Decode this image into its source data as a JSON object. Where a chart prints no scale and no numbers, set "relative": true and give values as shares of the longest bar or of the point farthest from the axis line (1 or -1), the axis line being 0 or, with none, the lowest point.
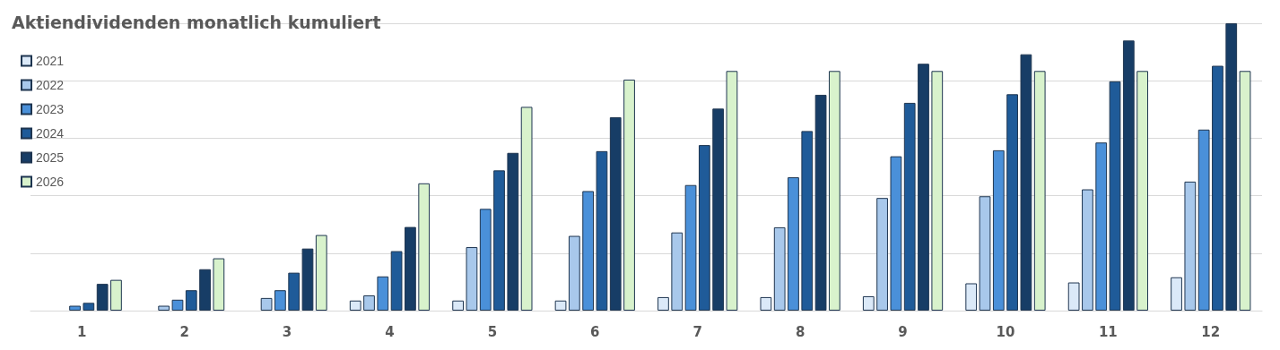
{
  "chart_data": {
    "type": "bar",
    "title": "Aktiendividenden monatlich kumuliert",
    "relative": true,
    "categories": [
      "1",
      "2",
      "3",
      "4",
      "5",
      "6",
      "7",
      "8",
      "9",
      "10",
      "11",
      "12"
    ],
    "series": [
      {
        "name": "2021",
        "color": "#dbe9f8",
        "values": [
          null,
          null,
          null,
          0.035,
          0.035,
          0.035,
          0.047,
          0.047,
          0.05,
          0.095,
          0.098,
          0.116
        ]
      },
      {
        "name": "2022",
        "color": "#a8c8eb",
        "values": [
          null,
          0.017,
          0.044,
          0.053,
          0.221,
          0.26,
          0.272,
          0.29,
          0.392,
          0.398,
          0.422,
          0.449
        ]
      },
      {
        "name": "2023",
        "color": "#4a90d9",
        "values": [
          0.017,
          0.038,
          0.071,
          0.119,
          0.354,
          0.416,
          0.437,
          0.464,
          0.537,
          0.558,
          0.585,
          0.63
        ]
      },
      {
        "name": "2024",
        "color": "#1f5b99",
        "values": [
          0.027,
          0.071,
          0.132,
          0.207,
          0.488,
          0.555,
          0.576,
          0.625,
          0.723,
          0.753,
          0.798,
          0.852
        ]
      },
      {
        "name": "2025",
        "color": "#173d66",
        "values": [
          0.093,
          0.144,
          0.216,
          0.291,
          0.549,
          0.673,
          0.703,
          0.751,
          0.859,
          0.892,
          0.94,
          1
        ]
      },
      {
        "name": "2026",
        "color": "#d8f2cc",
        "values": [
          0.107,
          0.182,
          0.263,
          0.443,
          0.709,
          0.804,
          0.834,
          0.834,
          0.834,
          0.834,
          0.834,
          0.834
        ]
      }
    ],
    "grid": "y",
    "legend": "top left"
  }
}
